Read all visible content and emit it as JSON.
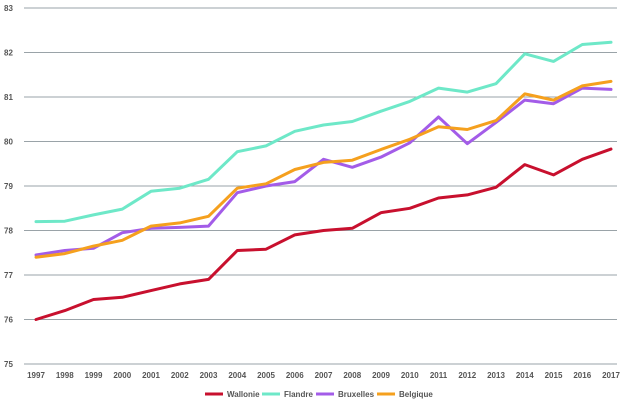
{
  "chart_data": {
    "type": "line",
    "title": "",
    "xlabel": "",
    "ylabel": "",
    "ylim": [
      75,
      83
    ],
    "yticks": [
      "75",
      "76",
      "77",
      "78",
      "79",
      "80",
      "81",
      "82",
      "83"
    ],
    "grid": "horizontal",
    "legend_position": "bottom",
    "categories": [
      "1997",
      "1998",
      "1999",
      "2000",
      "2001",
      "2002",
      "2003",
      "2004",
      "2005",
      "2006",
      "2007",
      "2008",
      "2009",
      "2010",
      "2011",
      "2012",
      "2013",
      "2014",
      "2015",
      "2016",
      "2017"
    ],
    "series": [
      {
        "name": "Wallonie",
        "color": "#c8102e",
        "values": [
          76.0,
          76.2,
          76.45,
          76.5,
          76.65,
          76.8,
          76.9,
          77.55,
          77.58,
          77.9,
          78.0,
          78.05,
          78.4,
          78.5,
          78.73,
          78.8,
          78.97,
          79.48,
          79.25,
          79.6,
          79.83
        ]
      },
      {
        "name": "Flandre",
        "color": "#6ee8c8",
        "values": [
          78.2,
          78.21,
          78.35,
          78.48,
          78.88,
          78.95,
          79.15,
          79.77,
          79.9,
          80.23,
          80.37,
          80.45,
          80.68,
          80.9,
          81.2,
          81.11,
          81.3,
          81.97,
          81.8,
          82.18,
          82.23
        ]
      },
      {
        "name": "Bruxelles",
        "color": "#a35ce8",
        "values": [
          77.45,
          77.55,
          77.6,
          77.95,
          78.05,
          78.07,
          78.1,
          78.85,
          79.0,
          79.1,
          79.6,
          79.42,
          79.65,
          79.97,
          80.55,
          79.95,
          80.43,
          80.93,
          80.85,
          81.2,
          81.17
        ]
      },
      {
        "name": "Belgique",
        "color": "#f5a01e",
        "values": [
          77.4,
          77.48,
          77.65,
          77.78,
          78.1,
          78.17,
          78.32,
          78.95,
          79.05,
          79.37,
          79.53,
          79.58,
          79.82,
          80.05,
          80.33,
          80.27,
          80.47,
          81.07,
          80.93,
          81.25,
          81.35
        ]
      }
    ]
  }
}
